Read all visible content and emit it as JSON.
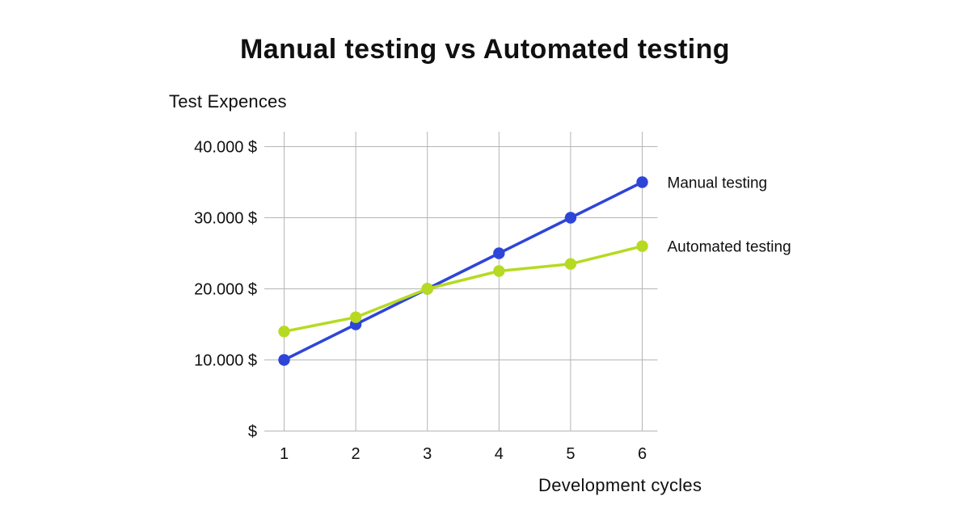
{
  "colors": {
    "background": "#ffffff",
    "grid": "#b5b5b5",
    "text": "#101010",
    "manual_line": "#2e45d8",
    "automated_line": "#b6da21"
  },
  "chart_data": {
    "type": "line",
    "title": "Manual testing vs Automated testing",
    "xlabel": "Development cycles",
    "ylabel": "Test Expences",
    "x": [
      1,
      2,
      3,
      4,
      5,
      6
    ],
    "x_tick_labels": [
      "1",
      "2",
      "3",
      "4",
      "5",
      "6"
    ],
    "y_ticks": [
      {
        "value": 0,
        "label": "$"
      },
      {
        "value": 10000,
        "label": "10.000 $"
      },
      {
        "value": 20000,
        "label": "20.000 $"
      },
      {
        "value": 30000,
        "label": "30.000 $"
      },
      {
        "value": 40000,
        "label": "40.000 $"
      }
    ],
    "ylim": [
      0,
      42000
    ],
    "xlim": [
      1,
      6
    ],
    "grid": true,
    "legend_position": "right-of-line-ends",
    "series": [
      {
        "name": "Manual testing",
        "color": "#2e45d8",
        "values": [
          10000,
          15000,
          20000,
          25000,
          30000,
          35000
        ]
      },
      {
        "name": "Automated testing",
        "color": "#b6da21",
        "values": [
          14000,
          16000,
          20000,
          22500,
          23500,
          26000
        ]
      }
    ]
  }
}
